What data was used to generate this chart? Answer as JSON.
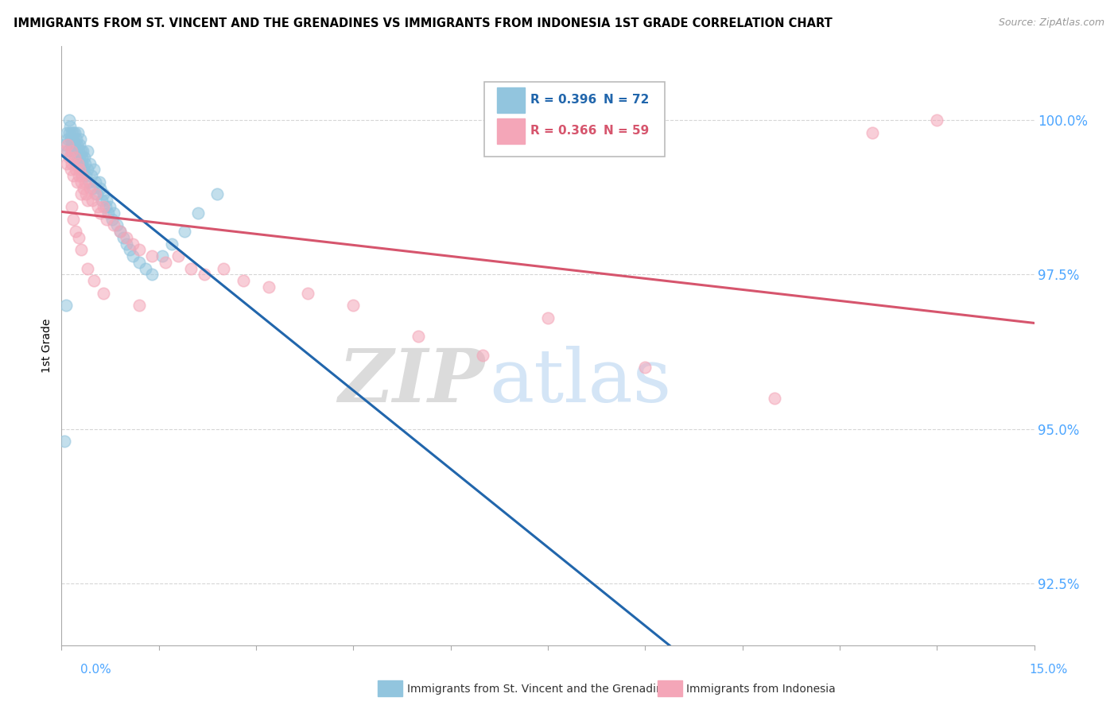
{
  "title": "IMMIGRANTS FROM ST. VINCENT AND THE GRENADINES VS IMMIGRANTS FROM INDONESIA 1ST GRADE CORRELATION CHART",
  "source": "Source: ZipAtlas.com",
  "ylabel": "1st Grade",
  "ytick_values": [
    92.5,
    95.0,
    97.5,
    100.0
  ],
  "xmin": 0.0,
  "xmax": 15.0,
  "ymin": 91.5,
  "ymax": 101.2,
  "legend_blue_r": "R = 0.396",
  "legend_blue_n": "N = 72",
  "legend_pink_r": "R = 0.366",
  "legend_pink_n": "N = 59",
  "blue_color": "#92c5de",
  "pink_color": "#f4a6b8",
  "trendline_blue": "#2166ac",
  "trendline_pink": "#d6556d",
  "watermark_zip": "ZIP",
  "watermark_atlas": "atlas",
  "blue_scatter_x": [
    0.05,
    0.08,
    0.1,
    0.1,
    0.12,
    0.12,
    0.13,
    0.14,
    0.15,
    0.15,
    0.16,
    0.17,
    0.18,
    0.18,
    0.2,
    0.2,
    0.2,
    0.21,
    0.22,
    0.23,
    0.24,
    0.25,
    0.25,
    0.26,
    0.27,
    0.28,
    0.28,
    0.29,
    0.3,
    0.3,
    0.31,
    0.32,
    0.33,
    0.34,
    0.35,
    0.36,
    0.38,
    0.4,
    0.4,
    0.42,
    0.44,
    0.46,
    0.48,
    0.5,
    0.52,
    0.55,
    0.58,
    0.6,
    0.62,
    0.65,
    0.68,
    0.7,
    0.72,
    0.75,
    0.78,
    0.8,
    0.85,
    0.9,
    0.95,
    1.0,
    1.05,
    1.1,
    1.2,
    1.3,
    1.4,
    1.55,
    1.7,
    1.9,
    2.1,
    2.4,
    0.05,
    0.07
  ],
  "blue_scatter_y": [
    99.6,
    99.8,
    99.5,
    99.7,
    99.8,
    100.0,
    99.9,
    99.7,
    99.8,
    99.6,
    99.5,
    99.7,
    99.8,
    99.6,
    99.4,
    99.6,
    99.8,
    99.5,
    99.3,
    99.7,
    99.6,
    99.4,
    99.8,
    99.5,
    99.3,
    99.6,
    99.4,
    99.7,
    99.5,
    99.2,
    99.4,
    99.3,
    99.5,
    99.2,
    99.4,
    99.3,
    99.1,
    99.2,
    99.5,
    99.0,
    99.3,
    99.1,
    98.9,
    99.2,
    99.0,
    98.8,
    99.0,
    98.9,
    98.7,
    98.8,
    98.6,
    98.7,
    98.5,
    98.6,
    98.4,
    98.5,
    98.3,
    98.2,
    98.1,
    98.0,
    97.9,
    97.8,
    97.7,
    97.6,
    97.5,
    97.8,
    98.0,
    98.2,
    98.5,
    98.8,
    94.8,
    97.0
  ],
  "pink_scatter_x": [
    0.05,
    0.08,
    0.1,
    0.12,
    0.14,
    0.15,
    0.16,
    0.18,
    0.2,
    0.22,
    0.24,
    0.25,
    0.26,
    0.28,
    0.3,
    0.3,
    0.32,
    0.34,
    0.36,
    0.38,
    0.4,
    0.44,
    0.48,
    0.52,
    0.56,
    0.6,
    0.65,
    0.7,
    0.8,
    0.9,
    1.0,
    1.1,
    1.2,
    1.4,
    1.6,
    1.8,
    2.0,
    2.2,
    2.5,
    2.8,
    3.2,
    3.8,
    4.5,
    5.5,
    6.5,
    7.5,
    9.0,
    11.0,
    12.5,
    13.5,
    0.15,
    0.18,
    0.22,
    0.26,
    0.3,
    0.4,
    0.5,
    0.65,
    1.2
  ],
  "pink_scatter_y": [
    99.5,
    99.3,
    99.6,
    99.4,
    99.2,
    99.5,
    99.3,
    99.1,
    99.4,
    99.2,
    99.0,
    99.3,
    99.1,
    99.2,
    99.0,
    98.8,
    99.1,
    98.9,
    99.0,
    98.8,
    98.7,
    98.9,
    98.7,
    98.8,
    98.6,
    98.5,
    98.6,
    98.4,
    98.3,
    98.2,
    98.1,
    98.0,
    97.9,
    97.8,
    97.7,
    97.8,
    97.6,
    97.5,
    97.6,
    97.4,
    97.3,
    97.2,
    97.0,
    96.5,
    96.2,
    96.8,
    96.0,
    95.5,
    99.8,
    100.0,
    98.6,
    98.4,
    98.2,
    98.1,
    97.9,
    97.6,
    97.4,
    97.2,
    97.0
  ]
}
